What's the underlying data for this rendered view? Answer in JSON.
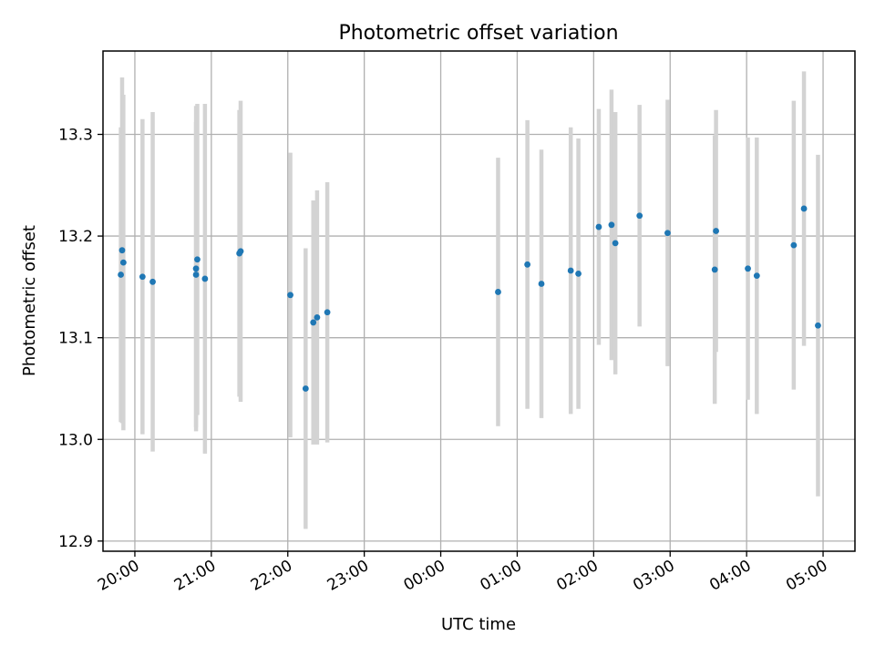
{
  "chart_data": {
    "type": "scatter",
    "title": "Photometric offset variation",
    "xlabel": "UTC time",
    "ylabel": "Photometric offset",
    "xlim": [
      "19:35",
      "05:25"
    ],
    "ylim": [
      12.89,
      13.382
    ],
    "grid": true,
    "legend": "none",
    "x_ticks": [
      "20:00",
      "21:00",
      "22:00",
      "23:00",
      "00:00",
      "01:00",
      "02:00",
      "03:00",
      "04:00",
      "05:00"
    ],
    "y_ticks": [
      12.9,
      13.0,
      13.1,
      13.2,
      13.3
    ],
    "x_tick_labels": [
      "20:00",
      "21:00",
      "22:00",
      "23:00",
      "00:00",
      "01:00",
      "02:00",
      "03:00",
      "04:00",
      "05:00"
    ],
    "y_tick_labels": [
      "12.9",
      "13.0",
      "13.1",
      "13.2",
      "13.3"
    ],
    "colors": {
      "points": "#1f77b4",
      "errorbars": "#d3d3d3",
      "grid": "#b0b0b0"
    },
    "series": [
      {
        "points": [
          {
            "x": "19:49",
            "y": 13.162,
            "err": 0.145
          },
          {
            "x": "19:50",
            "y": 13.186,
            "err": 0.17
          },
          {
            "x": "19:51",
            "y": 13.174,
            "err": 0.165
          },
          {
            "x": "20:06",
            "y": 13.16,
            "err": 0.155
          },
          {
            "x": "20:14",
            "y": 13.155,
            "err": 0.167
          },
          {
            "x": "20:48",
            "y": 13.168,
            "err": 0.16
          },
          {
            "x": "20:48",
            "y": 13.162,
            "err": 0.15
          },
          {
            "x": "20:49",
            "y": 13.177,
            "err": 0.153
          },
          {
            "x": "20:55",
            "y": 13.158,
            "err": 0.172
          },
          {
            "x": "21:22",
            "y": 13.183,
            "err": 0.141
          },
          {
            "x": "21:23",
            "y": 13.185,
            "err": 0.148
          },
          {
            "x": "22:02",
            "y": 13.142,
            "err": 0.14
          },
          {
            "x": "22:14",
            "y": 13.05,
            "err": 0.138
          },
          {
            "x": "22:20",
            "y": 13.115,
            "err": 0.12
          },
          {
            "x": "22:23",
            "y": 13.12,
            "err": 0.125
          },
          {
            "x": "22:31",
            "y": 13.125,
            "err": 0.128
          },
          {
            "x": "00:45",
            "y": 13.145,
            "err": 0.132
          },
          {
            "x": "01:08",
            "y": 13.172,
            "err": 0.142
          },
          {
            "x": "01:19",
            "y": 13.153,
            "err": 0.132
          },
          {
            "x": "01:42",
            "y": 13.166,
            "err": 0.141
          },
          {
            "x": "01:48",
            "y": 13.163,
            "err": 0.133
          },
          {
            "x": "02:04",
            "y": 13.209,
            "err": 0.116
          },
          {
            "x": "02:14",
            "y": 13.211,
            "err": 0.133
          },
          {
            "x": "02:17",
            "y": 13.193,
            "err": 0.129
          },
          {
            "x": "02:36",
            "y": 13.22,
            "err": 0.109
          },
          {
            "x": "02:58",
            "y": 13.203,
            "err": 0.131
          },
          {
            "x": "03:35",
            "y": 13.167,
            "err": 0.132
          },
          {
            "x": "03:36",
            "y": 13.205,
            "err": 0.119
          },
          {
            "x": "04:01",
            "y": 13.168,
            "err": 0.129
          },
          {
            "x": "04:08",
            "y": 13.161,
            "err": 0.136
          },
          {
            "x": "04:37",
            "y": 13.191,
            "err": 0.142
          },
          {
            "x": "04:45",
            "y": 13.227,
            "err": 0.135
          },
          {
            "x": "04:56",
            "y": 13.112,
            "err": 0.168
          }
        ]
      }
    ]
  }
}
